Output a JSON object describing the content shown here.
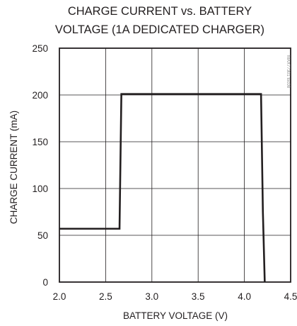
{
  "chart_data": {
    "type": "line",
    "title_lines": [
      "CHARGE CURRENT vs. BATTERY",
      "VOLTAGE (1A DEDICATED CHARGER)"
    ],
    "xlabel": "BATTERY VOLTAGE (V)",
    "ylabel": "CHARGE CURRENT (mA)",
    "xlim": [
      2.0,
      4.5
    ],
    "ylim": [
      0,
      250
    ],
    "x_ticks": [
      2.0,
      2.5,
      3.0,
      3.5,
      4.0,
      4.5
    ],
    "x_tick_labels": [
      "2.0",
      "2.5",
      "3.0",
      "3.5",
      "4.0",
      "4.5"
    ],
    "y_ticks": [
      0,
      50,
      100,
      150,
      200,
      250
    ],
    "y_tick_labels": [
      "0",
      "50",
      "100",
      "150",
      "200",
      "250"
    ],
    "grid": true,
    "legend": "none",
    "side_code": "MAX77301 toc08",
    "series": [
      {
        "x": [
          2.0,
          2.65,
          2.67,
          4.18,
          4.2,
          4.22
        ],
        "y": [
          57,
          57,
          201,
          201,
          75,
          0
        ]
      }
    ]
  }
}
